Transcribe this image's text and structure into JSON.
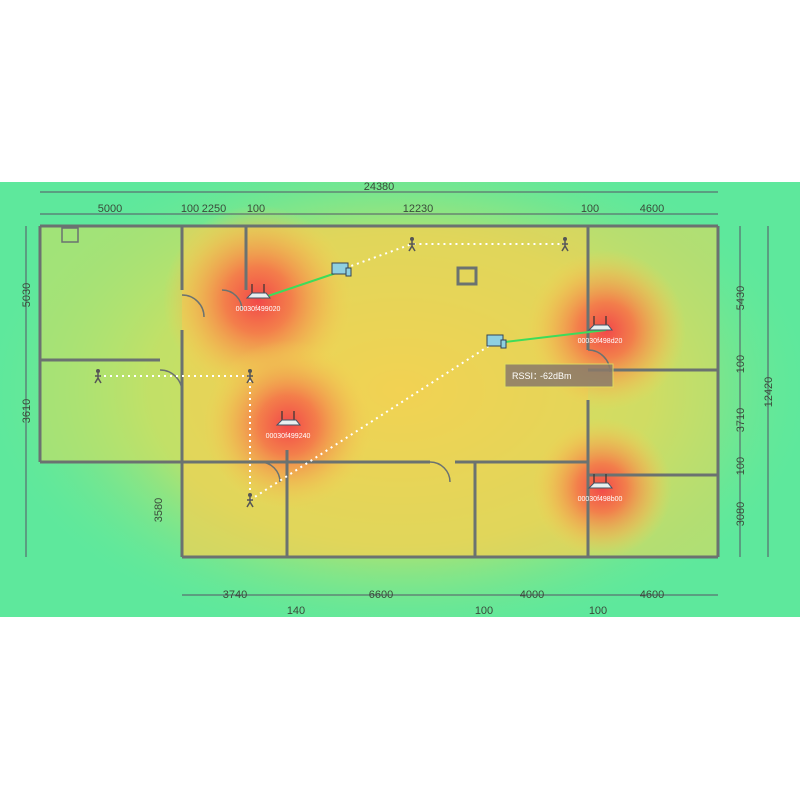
{
  "dimensions": {
    "top_total": "24380",
    "top": [
      "5000",
      "100",
      "2250",
      "100",
      "12230",
      "100",
      "4600"
    ],
    "left": [
      "5030",
      "3610",
      "3580"
    ],
    "right": [
      "5430",
      "100",
      "3710",
      "100",
      "3080"
    ],
    "right_total": "12420",
    "bottom": [
      "3740",
      "140",
      "6600",
      "100",
      "4000",
      "100",
      "4600"
    ]
  },
  "access_points": [
    {
      "label": "00030f499020",
      "icon": "router-icon"
    },
    {
      "label": "00030f498d20",
      "icon": "router-icon"
    },
    {
      "label": "00030f499240",
      "icon": "router-icon"
    },
    {
      "label": "00030f498b00",
      "icon": "router-icon"
    }
  ],
  "tooltip": {
    "label": "RSSI：",
    "value": "-62dBm"
  },
  "colors": {
    "low_signal": "#5ee89c",
    "mid_signal": "#f2d253",
    "high_signal": "#f2584a",
    "wall": "#6b7270",
    "link": "#3ddc5a"
  }
}
